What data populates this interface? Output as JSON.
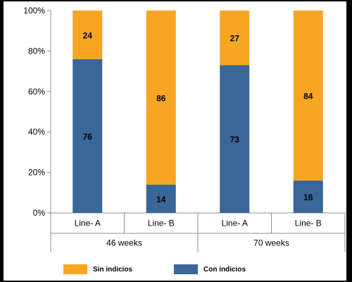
{
  "chart_data": {
    "type": "bar",
    "stacked": true,
    "normalized": true,
    "categories": [
      "Line- A",
      "Line- B",
      "Line- A",
      "Line- B"
    ],
    "groups": [
      {
        "label": "46 weeks",
        "categories": [
          0,
          1
        ]
      },
      {
        "label": "70 weeks",
        "categories": [
          2,
          3
        ]
      }
    ],
    "series": [
      {
        "name": "Con indicios",
        "color": "#3a6698",
        "values": [
          76,
          14,
          73,
          16
        ]
      },
      {
        "name": "Sin indicios",
        "color": "#f7a623",
        "values": [
          24,
          86,
          27,
          84
        ]
      }
    ],
    "y_ticks": [
      "0%",
      "20%",
      "40%",
      "60%",
      "80%",
      "100%"
    ],
    "ylim": [
      0,
      100
    ],
    "grid": false,
    "legend": {
      "position": "bottom",
      "order": [
        "Sin indicios",
        "Con indicios"
      ]
    }
  }
}
